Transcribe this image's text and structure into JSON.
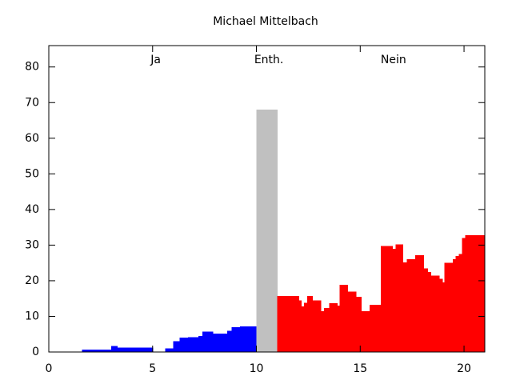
{
  "chart_data": {
    "type": "histogram",
    "title": "Michael Mittelbach",
    "series": [
      {
        "name": "Ja",
        "color": "#0000ff",
        "bins": [
          1.6,
          3,
          3.3,
          5,
          5.6,
          6,
          6.3,
          6.7,
          7.2,
          7.4,
          7.9,
          8.6,
          8.8,
          9.2,
          10
        ],
        "values": [
          0.7,
          1.7,
          1.2,
          0,
          1,
          3,
          4,
          4.2,
          4.5,
          5.7,
          5.2,
          6,
          7,
          7.2
        ]
      },
      {
        "name": "Enth.",
        "color": "#c0c0c0",
        "bins": [
          10,
          11
        ],
        "values": [
          68
        ]
      },
      {
        "name": "Nein",
        "color": "#ff0000",
        "bins": [
          11,
          12.05,
          12.15,
          12.3,
          12.45,
          12.7,
          13.1,
          13.25,
          13.5,
          13.9,
          14.0,
          14.4,
          14.8,
          15.05,
          15.45,
          16.0,
          16.55,
          16.7,
          17.05,
          17.25,
          17.65,
          18.05,
          18.25,
          18.4,
          18.8,
          18.95,
          19.05,
          19.45,
          19.6,
          19.75,
          19.9,
          20.05,
          21
        ],
        "values": [
          15.7,
          14.5,
          12.8,
          13.8,
          15.7,
          14.5,
          11.5,
          12.4,
          13.7,
          13,
          18.9,
          17,
          15.5,
          11.5,
          13.2,
          29.8,
          29,
          30.2,
          25.2,
          26,
          27.2,
          23.5,
          22.5,
          21.5,
          20.5,
          19.5,
          25,
          26,
          27,
          27.5,
          32,
          32.8
        ]
      }
    ],
    "xlim": [
      0,
      21
    ],
    "xticks": [
      0,
      5,
      10,
      15,
      20
    ],
    "ylim": [
      0,
      86
    ],
    "yticks": [
      0,
      10,
      20,
      30,
      40,
      50,
      60,
      70,
      80
    ]
  }
}
